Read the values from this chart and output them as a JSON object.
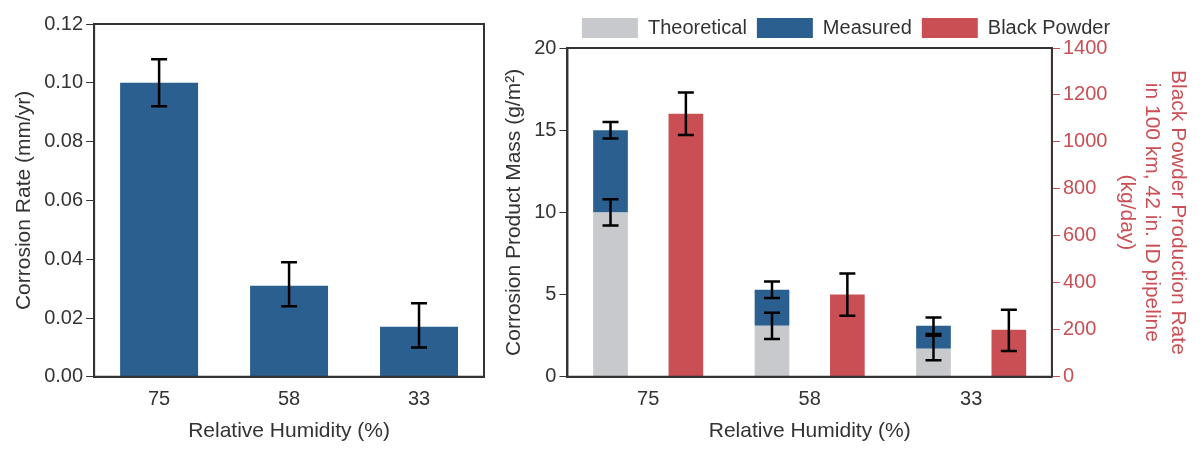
{
  "chart_data": [
    {
      "type": "bar",
      "xlabel": "Relative Humidity (%)",
      "ylabel": "Corrosion Rate (mm/yr)",
      "categories": [
        "75",
        "58",
        "33"
      ],
      "values": [
        0.1,
        0.031,
        0.017
      ],
      "errors": [
        [
          0.092,
          0.108
        ],
        [
          0.024,
          0.039
        ],
        [
          0.01,
          0.025
        ]
      ],
      "color": "#2b5f8f",
      "ylim": [
        0,
        0.12
      ],
      "yticks": [
        {
          "value": 0,
          "label": "0.00"
        },
        {
          "value": 0.02,
          "label": "0.02"
        },
        {
          "value": 0.04,
          "label": "0.04"
        },
        {
          "value": 0.06,
          "label": "0.06"
        },
        {
          "value": 0.08,
          "label": "0.08"
        },
        {
          "value": 0.1,
          "label": "0.10"
        },
        {
          "value": 0.12,
          "label": "0.12"
        }
      ],
      "grid": false,
      "legend": false
    },
    {
      "type": "bar",
      "stacked": true,
      "xlabel": "Relative Humidity (%)",
      "ylabel": "Corrosion Product Mass (g/m²)",
      "y2label": "Black Powder Production Rate\nin 100 km, 42 in. ID pipeline\n(kg/day)",
      "categories": [
        "75",
        "58",
        "33"
      ],
      "series": [
        {
          "name": "Theoretical",
          "color": "#c8c9cc",
          "values": [
            10,
            3.1,
            1.7
          ],
          "errors": [
            [
              9.2,
              10.8
            ],
            [
              2.3,
              3.9
            ],
            [
              1.0,
              2.5
            ]
          ]
        },
        {
          "name": "Measured",
          "color": "#2b5f8f",
          "values": [
            5,
            2.2,
            1.4
          ],
          "errors": [
            [
              14.5,
              15.5
            ],
            [
              4.8,
              5.8
            ],
            [
              2.6,
              3.6
            ]
          ]
        },
        {
          "name": "Black Powder",
          "color": "#c94f55",
          "axis": "y2",
          "values": [
            1120,
            350,
            200
          ],
          "errors": [
            [
              1030,
              1210
            ],
            [
              260,
              440
            ],
            [
              110,
              285
            ]
          ]
        }
      ],
      "ylim": [
        0,
        20
      ],
      "yticks": [
        0,
        5,
        10,
        15,
        20
      ],
      "y2lim": [
        0,
        1400
      ],
      "y2ticks": [
        0,
        200,
        400,
        600,
        800,
        1000,
        1200,
        1400
      ],
      "grid": false,
      "legend": "top"
    }
  ]
}
